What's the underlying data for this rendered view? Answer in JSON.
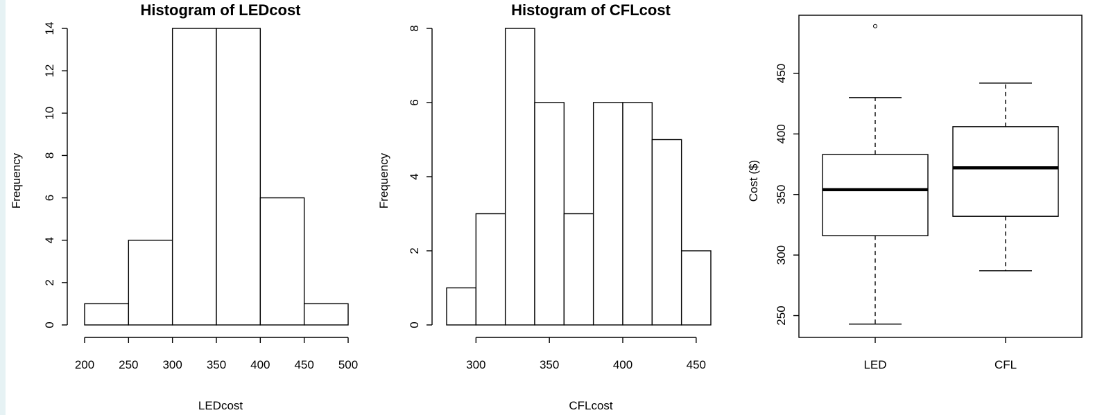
{
  "chart_data": [
    {
      "type": "bar",
      "title": "Histogram of LEDcost",
      "xlabel": "LEDcost",
      "ylabel": "Frequency",
      "bin_edges": [
        200,
        250,
        300,
        350,
        400,
        450,
        500
      ],
      "values": [
        1,
        4,
        14,
        14,
        6,
        1
      ],
      "xlim": [
        200,
        500
      ],
      "ylim": [
        0,
        14
      ],
      "x_ticks": [
        200,
        250,
        300,
        350,
        400,
        450,
        500
      ],
      "y_ticks": [
        0,
        2,
        4,
        6,
        8,
        10,
        12,
        14
      ],
      "grid": false
    },
    {
      "type": "bar",
      "title": "Histogram of CFLcost",
      "xlabel": "CFLcost",
      "ylabel": "Frequency",
      "bin_edges": [
        280,
        300,
        320,
        340,
        360,
        380,
        400,
        420,
        440,
        460
      ],
      "values": [
        1,
        3,
        8,
        6,
        3,
        6,
        6,
        5,
        2
      ],
      "xlim": [
        280,
        460
      ],
      "ylim": [
        0,
        8
      ],
      "x_ticks": [
        300,
        350,
        400,
        450
      ],
      "y_ticks": [
        0,
        2,
        4,
        6,
        8
      ],
      "grid": false
    },
    {
      "type": "box",
      "title": "",
      "xlabel": "",
      "ylabel": "Cost ($)",
      "categories": [
        "LED",
        "CFL"
      ],
      "boxes": [
        {
          "name": "LED",
          "whisker_low": 243,
          "q1": 316,
          "median": 354,
          "q3": 383,
          "whisker_high": 430,
          "outliers": [
            489
          ]
        },
        {
          "name": "CFL",
          "whisker_low": 287,
          "q1": 332,
          "median": 372,
          "q3": 406,
          "whisker_high": 442,
          "outliers": []
        }
      ],
      "ylim": [
        232,
        498
      ],
      "y_ticks": [
        250,
        300,
        350,
        400,
        450
      ],
      "grid": false
    }
  ]
}
